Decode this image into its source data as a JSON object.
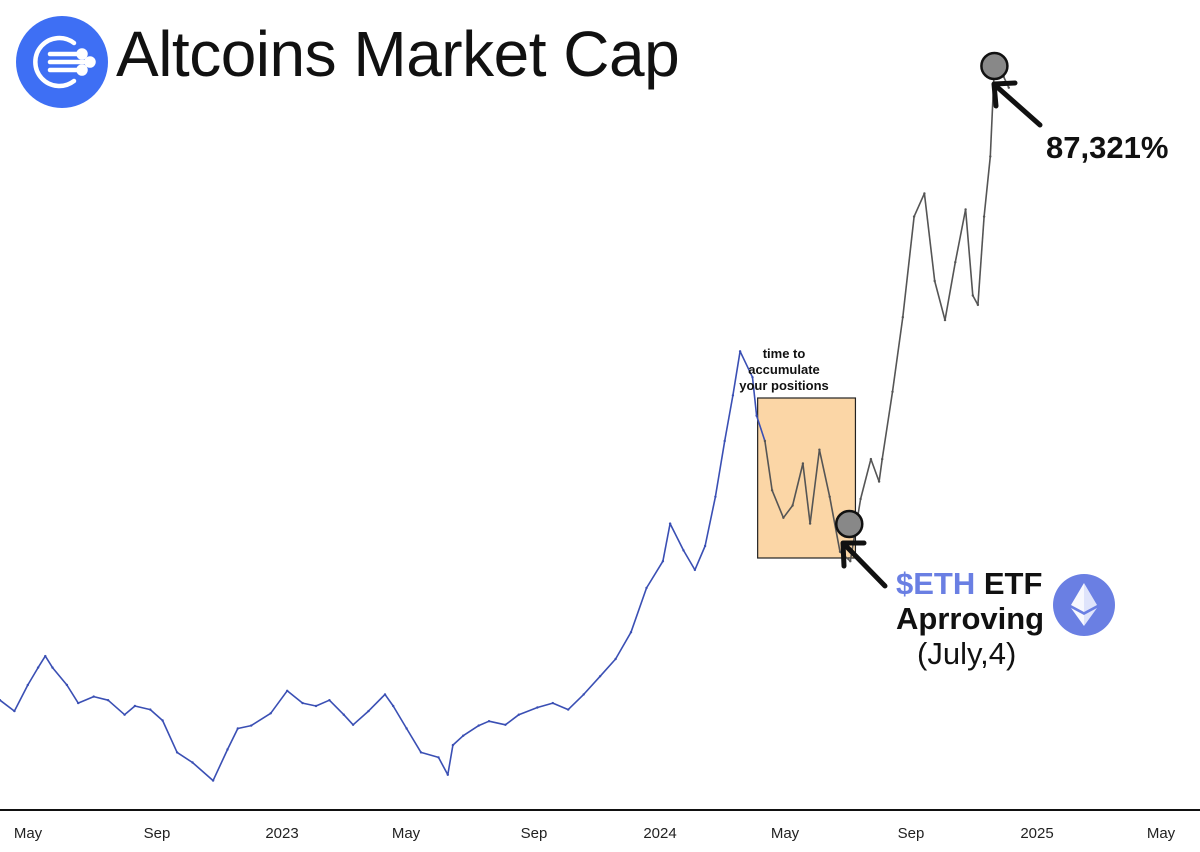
{
  "header": {
    "title": "Altcoins Market Cap",
    "brand_color": "#3e6ff4"
  },
  "annotations": {
    "peak_label": "87,321%",
    "box_note": [
      "time to",
      "accumulate",
      "your positions"
    ],
    "etf_ticker": "$ETH",
    "etf_word": " ETF",
    "etf_line2": "Aprroving",
    "etf_line3": "(July,4)",
    "ticker_color": "#6a7fe3",
    "box_fill": "#fbd6a6",
    "eth_badge_color": "#6a7fe3"
  },
  "chart_data": {
    "type": "line",
    "title": "Altcoins Market Cap",
    "xlabel": "",
    "ylabel": "",
    "x_ticks": [
      "May",
      "Sep",
      "2023",
      "May",
      "Sep",
      "2024",
      "May",
      "Sep",
      "2025",
      "May"
    ],
    "grid": false,
    "y_axis_shown": false,
    "series_colors": {
      "before_box": "#3a4fb4",
      "after_box": "#555555"
    },
    "x_range": [
      "2022-04-01",
      "2025-05-31"
    ],
    "y_range": [
      0,
      100
    ],
    "y_scale": "relative",
    "x": [
      "2022-04-01",
      "2022-04-15",
      "2022-04-28",
      "2022-05-08",
      "2022-05-15",
      "2022-05-22",
      "2022-06-05",
      "2022-06-16",
      "2022-07-01",
      "2022-07-15",
      "2022-07-31",
      "2022-08-10",
      "2022-08-25",
      "2022-09-06",
      "2022-09-20",
      "2022-10-05",
      "2022-10-25",
      "2022-11-08",
      "2022-11-18",
      "2022-12-01",
      "2022-12-20",
      "2023-01-05",
      "2023-01-20",
      "2023-02-02",
      "2023-02-15",
      "2023-03-01",
      "2023-03-10",
      "2023-03-25",
      "2023-04-10",
      "2023-04-18",
      "2023-05-01",
      "2023-05-15",
      "2023-06-01",
      "2023-06-10",
      "2023-06-15",
      "2023-06-25",
      "2023-07-10",
      "2023-07-20",
      "2023-08-05",
      "2023-08-18",
      "2023-09-05",
      "2023-09-20",
      "2023-10-05",
      "2023-10-20",
      "2023-11-05",
      "2023-11-20",
      "2023-12-05",
      "2023-12-20",
      "2024-01-05",
      "2024-01-12",
      "2024-01-25",
      "2024-02-05",
      "2024-02-15",
      "2024-02-25",
      "2024-03-05",
      "2024-03-13",
      "2024-03-20",
      "2024-04-01",
      "2024-04-05",
      "2024-04-13",
      "2024-04-20",
      "2024-05-01",
      "2024-05-10",
      "2024-05-20",
      "2024-05-27",
      "2024-06-05",
      "2024-06-15",
      "2024-06-25",
      "2024-07-05",
      "2024-07-15",
      "2024-07-25",
      "2024-08-02",
      "2024-08-05",
      "2024-08-15",
      "2024-08-25",
      "2024-09-05",
      "2024-09-15",
      "2024-09-25",
      "2024-10-05",
      "2024-10-15",
      "2024-10-25",
      "2024-11-01",
      "2024-11-06",
      "2024-11-12",
      "2024-11-18",
      "2024-11-22",
      "2024-12-01",
      "2024-12-06"
    ],
    "values": [
      12.4,
      10.9,
      14.5,
      16.9,
      18.5,
      16.9,
      14.5,
      12.0,
      12.9,
      12.4,
      10.4,
      11.6,
      11.1,
      9.6,
      5.2,
      3.8,
      1.3,
      5.6,
      8.5,
      8.9,
      10.6,
      13.7,
      12.0,
      11.6,
      12.4,
      10.4,
      9.0,
      10.9,
      13.2,
      11.6,
      8.5,
      5.2,
      4.5,
      2.1,
      6.2,
      7.5,
      8.9,
      9.5,
      9.0,
      10.4,
      11.4,
      12.0,
      11.1,
      13.2,
      15.7,
      18.1,
      21.8,
      27.9,
      31.6,
      36.8,
      33.1,
      30.4,
      33.7,
      40.5,
      48.2,
      54.5,
      60.6,
      57.0,
      51.7,
      48.2,
      41.4,
      37.6,
      39.3,
      45.1,
      36.8,
      47.0,
      40.5,
      32.9,
      31.6,
      40.2,
      45.7,
      42.6,
      45.7,
      55.0,
      65.3,
      79.2,
      82.4,
      70.3,
      64.9,
      72.9,
      80.2,
      68.3,
      67.0,
      79.2,
      87.5,
      100.0,
      98.5,
      97.0
    ],
    "markers": [
      {
        "label": "$ETH ETF Aprroving (July,4)",
        "x": "2024-07-04"
      },
      {
        "label": "87,321%",
        "x": "2024-11-22"
      }
    ],
    "highlight": {
      "label": "time to accumulate your positions",
      "x_from": "2024-04-06",
      "x_to": "2024-07-10"
    }
  }
}
